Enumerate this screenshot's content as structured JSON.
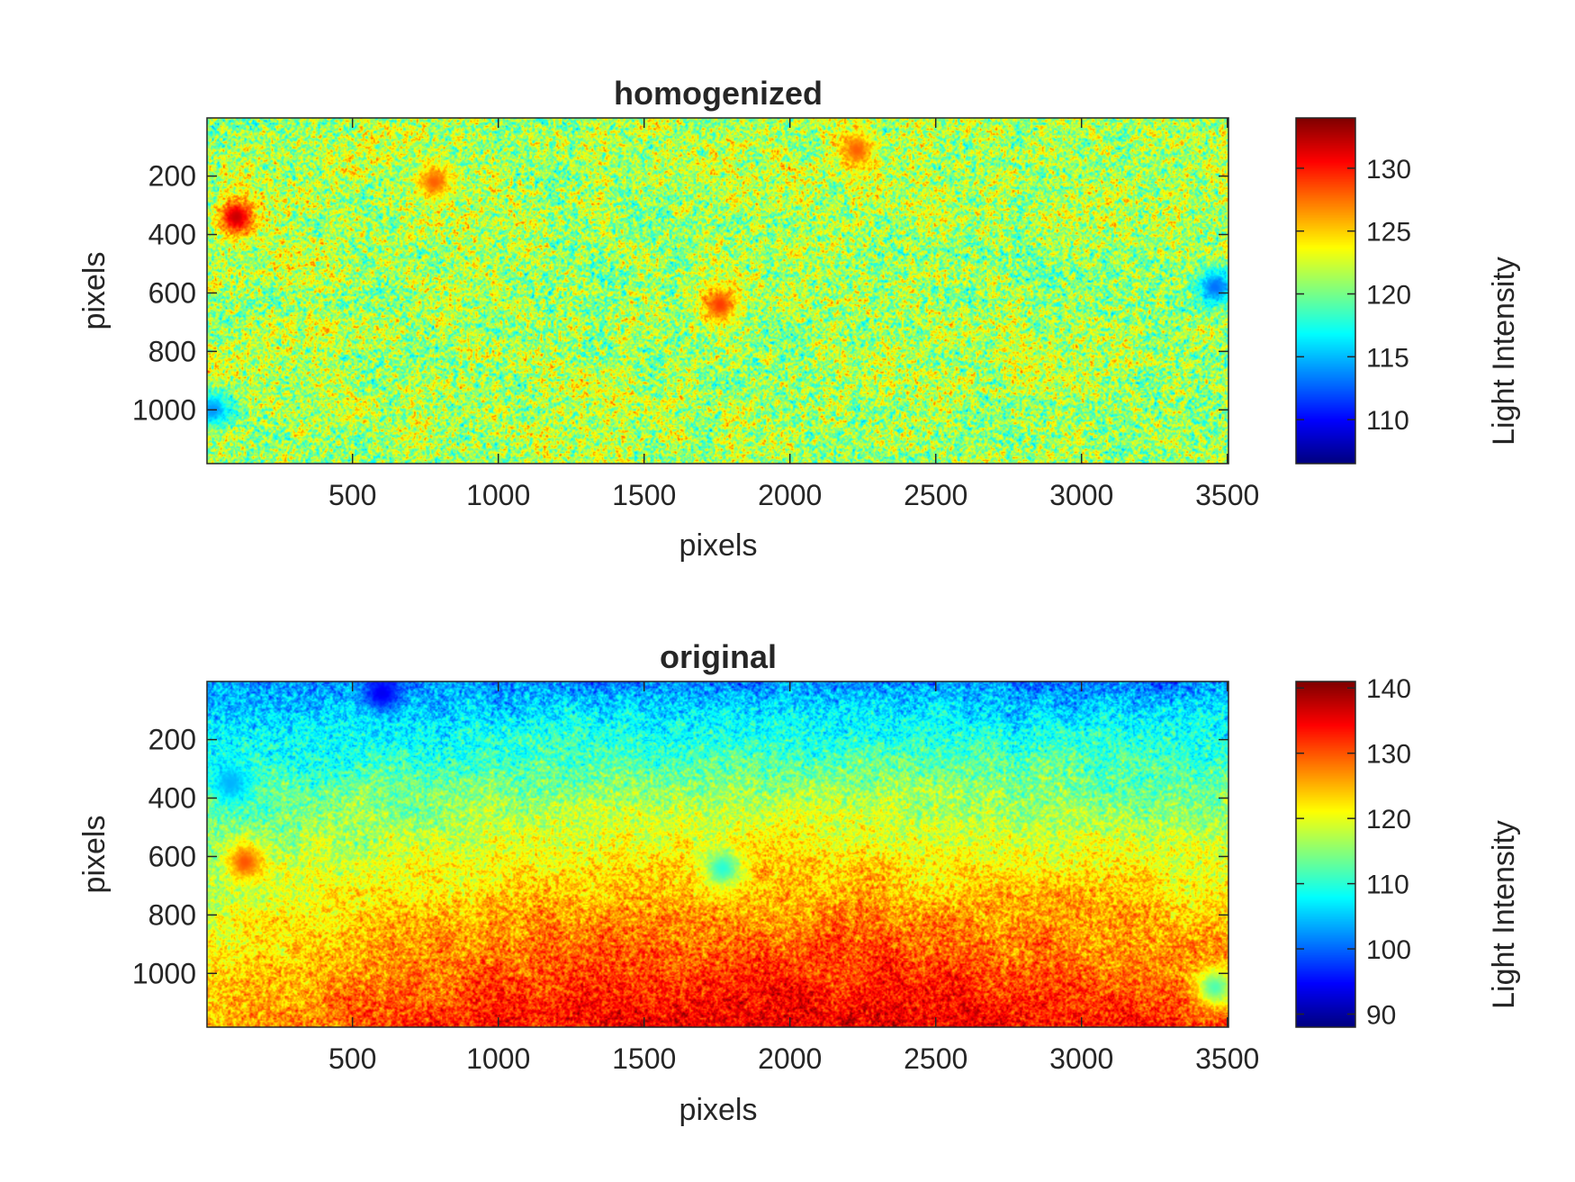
{
  "chart_data": [
    {
      "type": "heatmap",
      "title": "homogenized",
      "xlabel": "pixels",
      "ylabel": "pixels",
      "xlim": [
        1,
        3504
      ],
      "ylim": [
        1,
        1184
      ],
      "y_direction": "reversed (top = 1)",
      "xticks": [
        500,
        1000,
        1500,
        2000,
        2500,
        3000,
        3500
      ],
      "yticks": [
        200,
        400,
        600,
        800,
        1000
      ],
      "colormap": "jet",
      "colorbar": {
        "label": "Light Intensity",
        "clim": [
          106.5,
          134
        ],
        "ticks": [
          110,
          115,
          120,
          125,
          130
        ]
      },
      "field": {
        "description_values": "mostly uniform ~119-124 with fine random texture",
        "mean": 121.5,
        "noise_amplitude": 6,
        "hot_spots": [
          {
            "x": 100,
            "y": 340,
            "value": 132
          },
          {
            "x": 780,
            "y": 220,
            "value": 128
          },
          {
            "x": 1760,
            "y": 640,
            "value": 129
          },
          {
            "x": 2230,
            "y": 110,
            "value": 128
          }
        ],
        "cool_spots": [
          {
            "x": 3460,
            "y": 580,
            "value": 113
          },
          {
            "x": 20,
            "y": 1000,
            "value": 114
          }
        ]
      }
    },
    {
      "type": "heatmap",
      "title": "original",
      "xlabel": "pixels",
      "ylabel": "pixels",
      "xlim": [
        1,
        3504
      ],
      "ylim": [
        1,
        1184
      ],
      "y_direction": "reversed (top = 1)",
      "xticks": [
        500,
        1000,
        1500,
        2000,
        2500,
        3000,
        3500
      ],
      "yticks": [
        200,
        400,
        600,
        800,
        1000
      ],
      "colormap": "jet",
      "colorbar": {
        "label": "Light Intensity",
        "clim": [
          88,
          141
        ],
        "ticks": [
          90,
          100,
          110,
          120,
          130,
          140
        ]
      },
      "field": {
        "top_value": 101,
        "bottom_value_center": 136,
        "bottom_value_edge": 126,
        "center_x": 2050,
        "noise_amplitude": 7,
        "cool_spots": [
          {
            "x": 80,
            "y": 350,
            "value": 104
          },
          {
            "x": 1770,
            "y": 640,
            "value": 110
          },
          {
            "x": 3460,
            "y": 1050,
            "value": 112
          },
          {
            "x": 600,
            "y": 40,
            "value": 94
          }
        ],
        "warm_spots": [
          {
            "x": 130,
            "y": 620,
            "value": 130
          }
        ]
      }
    }
  ]
}
